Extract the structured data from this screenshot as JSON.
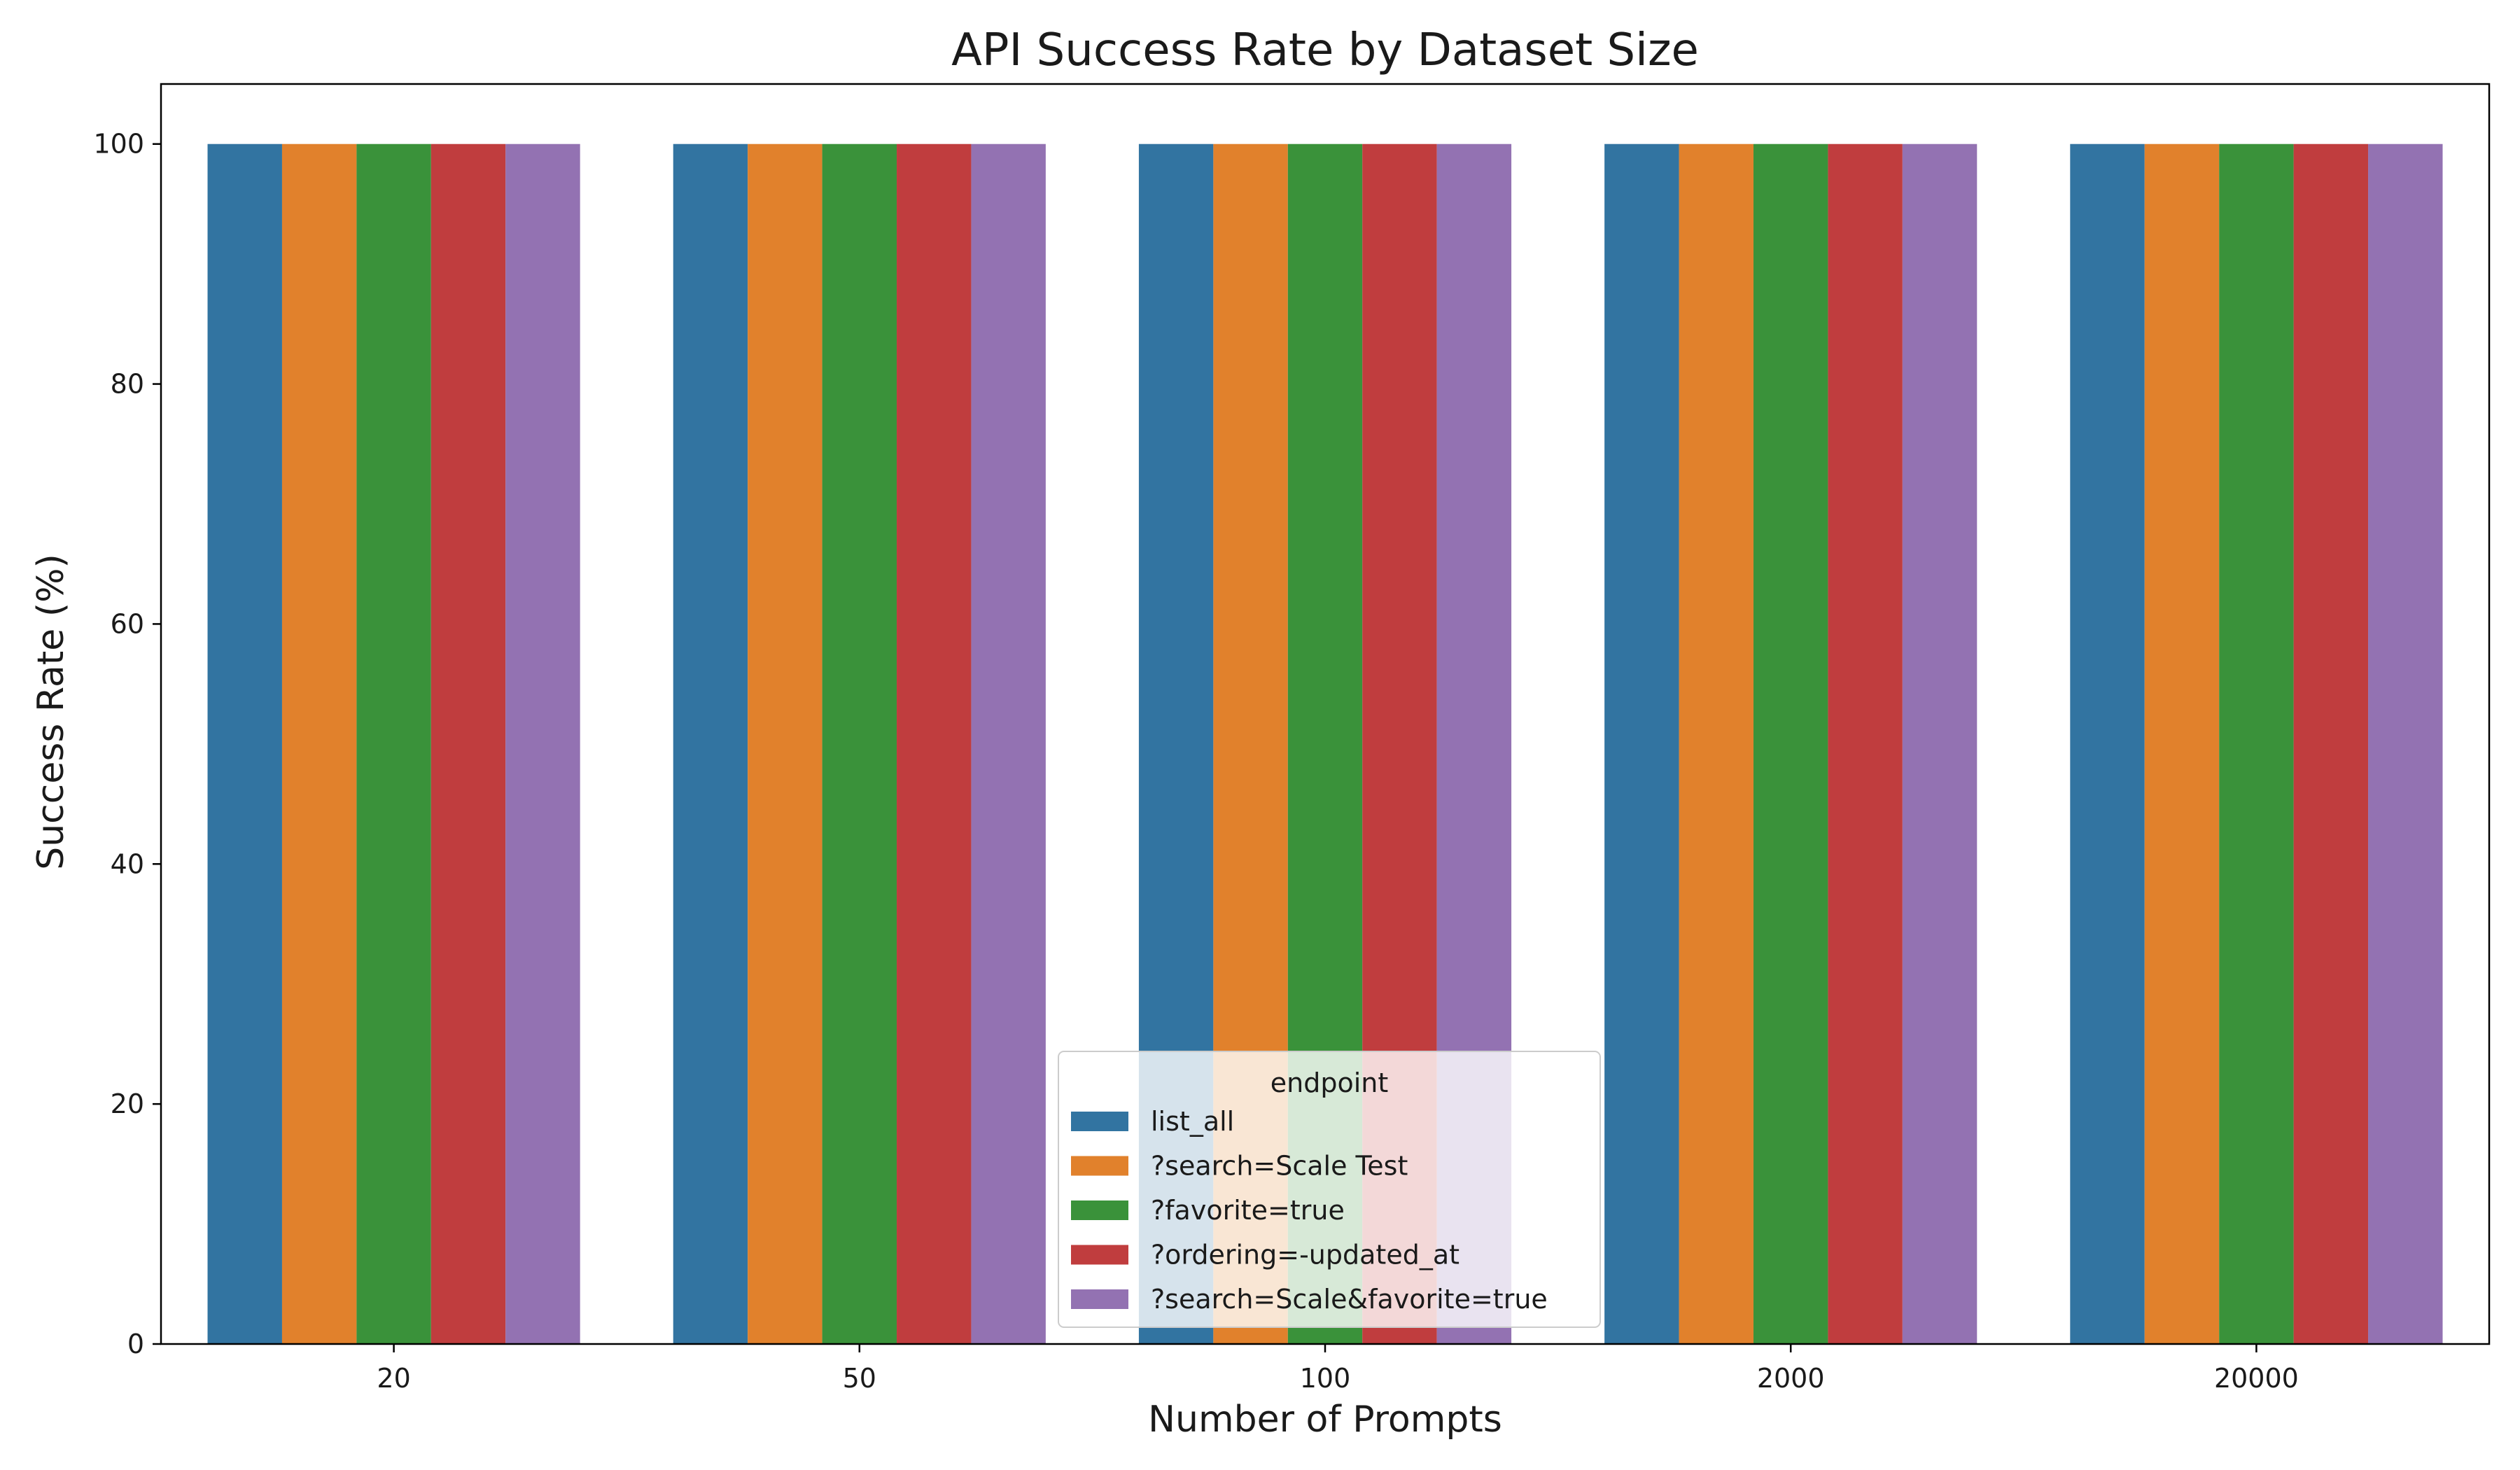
{
  "chart_data": {
    "type": "bar",
    "title": "API Success Rate by Dataset Size",
    "xlabel": "Number of Prompts",
    "ylabel": "Success Rate (%)",
    "categories": [
      "20",
      "50",
      "100",
      "2000",
      "20000"
    ],
    "ylim": [
      0,
      105
    ],
    "yticks": [
      0,
      20,
      40,
      60,
      80,
      100
    ],
    "grid": false,
    "legend": {
      "title": "endpoint",
      "placement": "lower-center"
    },
    "series": [
      {
        "name": "list_all",
        "color": "#3274a1",
        "values": [
          100,
          100,
          100,
          100,
          100
        ]
      },
      {
        "name": "?search=Scale Test",
        "color": "#e1812c",
        "values": [
          100,
          100,
          100,
          100,
          100
        ]
      },
      {
        "name": "?favorite=true",
        "color": "#3a923a",
        "values": [
          100,
          100,
          100,
          100,
          100
        ]
      },
      {
        "name": "?ordering=-updated_at",
        "color": "#c03d3e",
        "values": [
          100,
          100,
          100,
          100,
          100
        ]
      },
      {
        "name": "?search=Scale&favorite=true",
        "color": "#9372b2",
        "values": [
          100,
          100,
          100,
          100,
          100
        ]
      }
    ]
  }
}
